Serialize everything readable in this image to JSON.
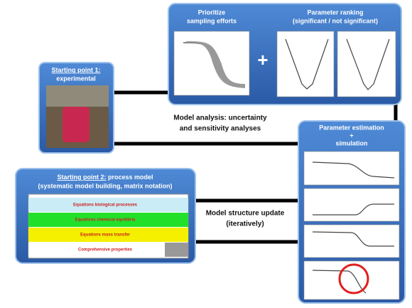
{
  "prioritize": {
    "lines": [
      "Prioritize",
      "sampling efforts"
    ]
  },
  "ranking": {
    "lines": [
      "Parameter ranking",
      "(significant / not significant)"
    ]
  },
  "plus": "+",
  "start1": {
    "title": "Starting point 1:",
    "subtitle": "experimental"
  },
  "analysis": {
    "lines": [
      "Model analysis: uncertainty",
      "and sensitivity analyses"
    ]
  },
  "estimation": {
    "lines": [
      "Parameter estimation",
      "+",
      "simulation"
    ]
  },
  "start2": {
    "title": "Starting point 2:",
    "line1_rest": " process model",
    "line2": "(systematic model building, matrix notation)"
  },
  "update": {
    "lines": [
      "Model structure update",
      "(iteratively)"
    ]
  },
  "table": {
    "rows": [
      "Equations biological processes",
      "Equations chemical equilibria",
      "Equations mass transfer",
      "Comprehensive properties"
    ]
  }
}
